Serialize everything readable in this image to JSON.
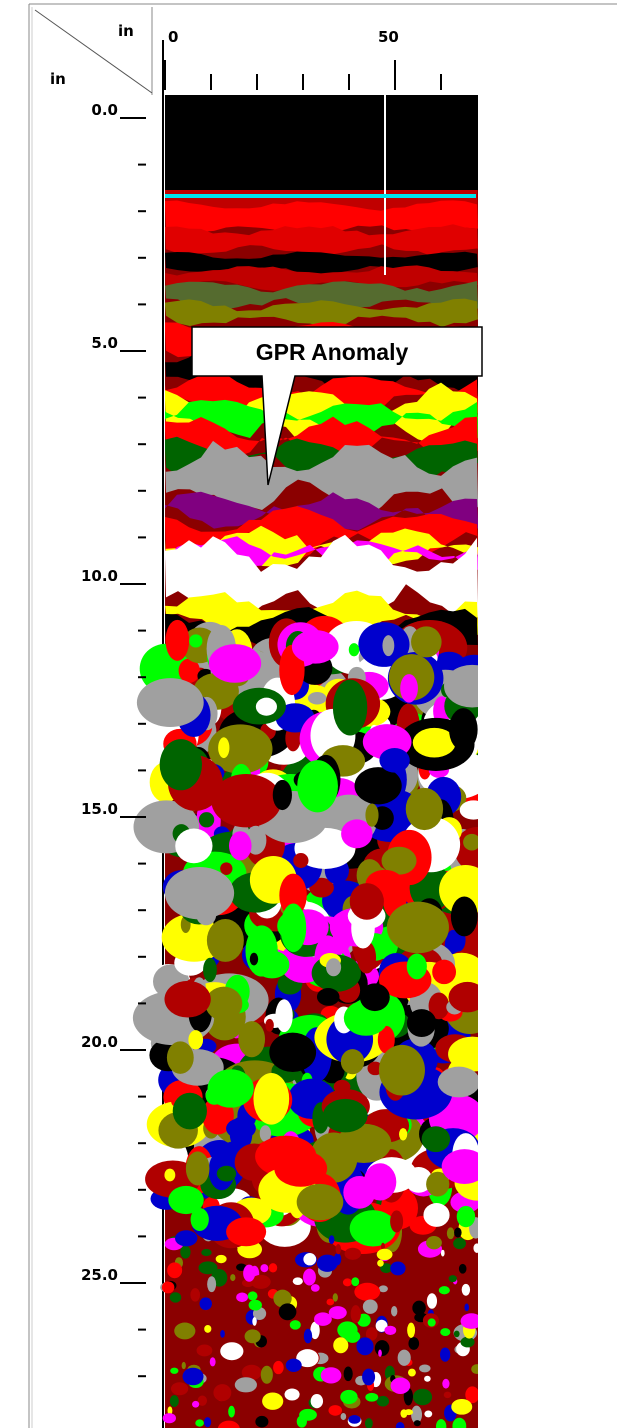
{
  "corner": {
    "x_unit": "in",
    "y_unit": "in"
  },
  "x_axis": {
    "labels": [
      "0",
      "50"
    ]
  },
  "y_axis": {
    "labels": [
      "0.0",
      "5.0",
      "10.0",
      "15.0",
      "20.0",
      "25.0"
    ]
  },
  "annotation": "GPR Anomaly"
}
